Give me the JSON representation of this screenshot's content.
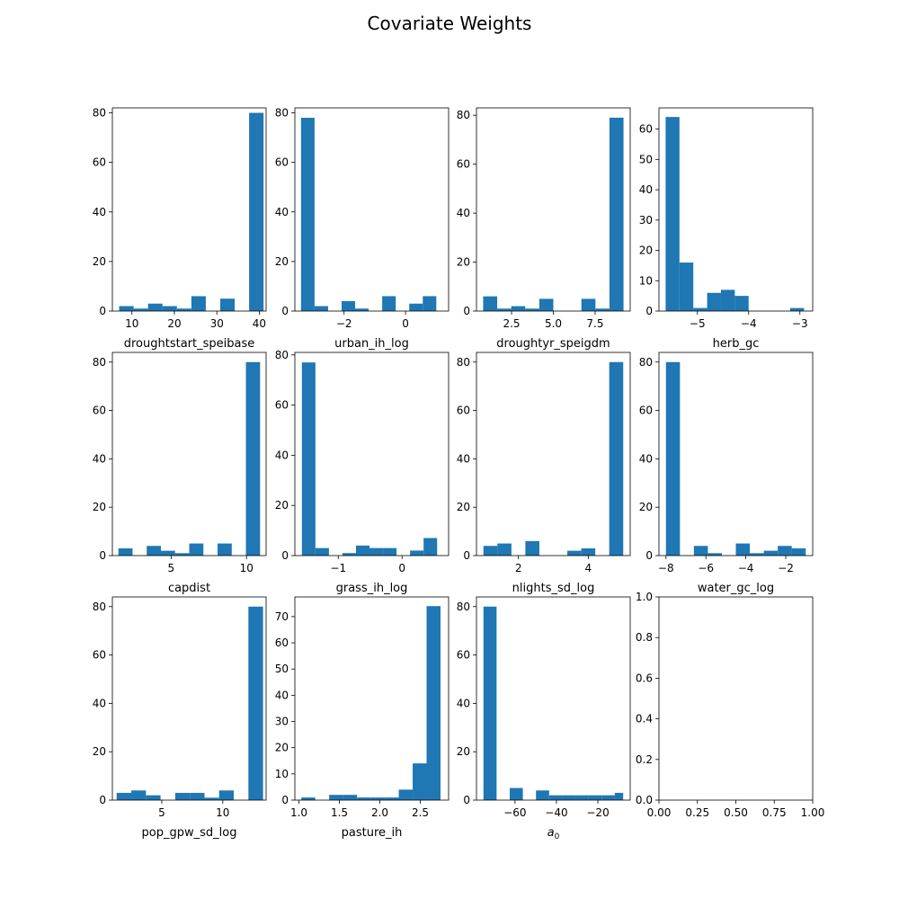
{
  "title": "Covariate Weights",
  "bar_color": "#1f77b4",
  "chart_data": [
    {
      "type": "bar",
      "xlabel": "droughtstart_speibase",
      "xlim": [
        5.4,
        41.6
      ],
      "ylim": [
        0,
        82
      ],
      "xticks": [
        10,
        20,
        30,
        40
      ],
      "xtick_labels": [
        "10",
        "20",
        "30",
        "40"
      ],
      "yticks": [
        0,
        20,
        40,
        60,
        80
      ],
      "ytick_labels": [
        "0",
        "20",
        "40",
        "60",
        "80"
      ],
      "bins": [
        [
          7,
          10.4,
          2
        ],
        [
          10.4,
          13.8,
          1
        ],
        [
          13.8,
          17.2,
          3
        ],
        [
          17.2,
          20.6,
          2
        ],
        [
          20.6,
          24,
          1
        ],
        [
          24,
          27.4,
          6
        ],
        [
          27.4,
          30.8,
          0
        ],
        [
          30.8,
          34.2,
          5
        ],
        [
          34.2,
          37.6,
          0
        ],
        [
          37.6,
          41,
          80
        ]
      ]
    },
    {
      "type": "bar",
      "xlabel": "urban_ih_log",
      "xlim": [
        -3.6,
        1.4
      ],
      "ylim": [
        0,
        82
      ],
      "xticks": [
        -2,
        0
      ],
      "xtick_labels": [
        "−2",
        "0"
      ],
      "yticks": [
        0,
        20,
        40,
        60,
        80
      ],
      "ytick_labels": [
        "0",
        "20",
        "40",
        "60",
        "80"
      ],
      "bins": [
        [
          -3.4,
          -2.96,
          78
        ],
        [
          -2.96,
          -2.52,
          2
        ],
        [
          -2.52,
          -2.08,
          0
        ],
        [
          -2.08,
          -1.64,
          4
        ],
        [
          -1.64,
          -1.2,
          1
        ],
        [
          -1.2,
          -0.76,
          0
        ],
        [
          -0.76,
          -0.32,
          6
        ],
        [
          -0.32,
          0.12,
          0
        ],
        [
          0.12,
          0.56,
          3
        ],
        [
          0.56,
          1,
          6
        ]
      ]
    },
    {
      "type": "bar",
      "xlabel": "droughtyr_speigdm",
      "xlim": [
        0.4,
        9.6
      ],
      "ylim": [
        0,
        83
      ],
      "xticks": [
        2.5,
        5.0,
        7.5
      ],
      "xtick_labels": [
        "2.5",
        "5.0",
        "7.5"
      ],
      "yticks": [
        0,
        20,
        40,
        60,
        80
      ],
      "ytick_labels": [
        "0",
        "20",
        "40",
        "60",
        "80"
      ],
      "bins": [
        [
          0.8,
          1.64,
          6
        ],
        [
          1.64,
          2.48,
          1
        ],
        [
          2.48,
          3.32,
          2
        ],
        [
          3.32,
          4.16,
          1
        ],
        [
          4.16,
          5,
          5
        ],
        [
          5,
          5.84,
          0
        ],
        [
          5.84,
          6.68,
          0
        ],
        [
          6.68,
          7.52,
          5
        ],
        [
          7.52,
          8.36,
          1
        ],
        [
          8.36,
          9.2,
          79
        ]
      ]
    },
    {
      "type": "bar",
      "xlabel": "herb_gc",
      "xlim": [
        -5.75,
        -2.75
      ],
      "ylim": [
        0,
        67
      ],
      "xticks": [
        -5,
        -4,
        -3
      ],
      "xtick_labels": [
        "−5",
        "−4",
        "−3"
      ],
      "yticks": [
        0,
        10,
        20,
        30,
        40,
        50,
        60
      ],
      "ytick_labels": [
        "0",
        "10",
        "20",
        "30",
        "40",
        "50",
        "60"
      ],
      "bins": [
        [
          -5.62,
          -5.35,
          64
        ],
        [
          -5.35,
          -5.08,
          16
        ],
        [
          -5.08,
          -4.81,
          1
        ],
        [
          -4.81,
          -4.54,
          6
        ],
        [
          -4.54,
          -4.27,
          7
        ],
        [
          -4.27,
          -4,
          5
        ],
        [
          -4,
          -3.73,
          0
        ],
        [
          -3.73,
          -3.46,
          0
        ],
        [
          -3.46,
          -3.19,
          0
        ],
        [
          -3.19,
          -2.92,
          1
        ]
      ]
    },
    {
      "type": "bar",
      "xlabel": "capdist",
      "xlim": [
        1.1,
        11.3
      ],
      "ylim": [
        0,
        84
      ],
      "xticks": [
        5,
        10
      ],
      "xtick_labels": [
        "5",
        "10"
      ],
      "yticks": [
        0,
        20,
        40,
        60,
        80
      ],
      "ytick_labels": [
        "0",
        "20",
        "40",
        "60",
        "80"
      ],
      "bins": [
        [
          1.5,
          2.44,
          3
        ],
        [
          2.44,
          3.38,
          0
        ],
        [
          3.38,
          4.32,
          4
        ],
        [
          4.32,
          5.26,
          2
        ],
        [
          5.26,
          6.2,
          1
        ],
        [
          6.2,
          7.14,
          5
        ],
        [
          7.14,
          8.08,
          0
        ],
        [
          8.08,
          9.02,
          5
        ],
        [
          9.02,
          9.96,
          0
        ],
        [
          9.96,
          10.9,
          80
        ]
      ]
    },
    {
      "type": "bar",
      "xlabel": "grass_ih_log",
      "xlim": [
        -1.68,
        0.73
      ],
      "ylim": [
        0,
        81
      ],
      "xticks": [
        -1,
        0
      ],
      "xtick_labels": [
        "−1",
        "0"
      ],
      "yticks": [
        0,
        20,
        40,
        60,
        80
      ],
      "ytick_labels": [
        "0",
        "20",
        "40",
        "60",
        "80"
      ],
      "bins": [
        [
          -1.57,
          -1.358,
          77
        ],
        [
          -1.358,
          -1.146,
          3
        ],
        [
          -1.146,
          -0.934,
          0
        ],
        [
          -0.934,
          -0.722,
          1
        ],
        [
          -0.722,
          -0.51,
          4
        ],
        [
          -0.51,
          -0.298,
          3
        ],
        [
          -0.298,
          -0.086,
          3
        ],
        [
          -0.086,
          0.126,
          0
        ],
        [
          0.126,
          0.338,
          2
        ],
        [
          0.338,
          0.55,
          7
        ]
      ]
    },
    {
      "type": "bar",
      "xlabel": "nlights_sd_log",
      "xlim": [
        0.8,
        5.2
      ],
      "ylim": [
        0,
        84
      ],
      "xticks": [
        2,
        4
      ],
      "xtick_labels": [
        "2",
        "4"
      ],
      "yticks": [
        0,
        20,
        40,
        60,
        80
      ],
      "ytick_labels": [
        "0",
        "20",
        "40",
        "60",
        "80"
      ],
      "bins": [
        [
          1,
          1.4,
          4
        ],
        [
          1.4,
          1.8,
          5
        ],
        [
          1.8,
          2.2,
          0
        ],
        [
          2.2,
          2.6,
          6
        ],
        [
          2.6,
          3,
          0
        ],
        [
          3,
          3.4,
          0
        ],
        [
          3.4,
          3.8,
          2
        ],
        [
          3.8,
          4.2,
          3
        ],
        [
          4.2,
          4.6,
          0
        ],
        [
          4.6,
          5,
          80
        ]
      ]
    },
    {
      "type": "bar",
      "xlabel": "water_gc_log",
      "xlim": [
        -8.35,
        -0.65
      ],
      "ylim": [
        0,
        84
      ],
      "xticks": [
        -8,
        -6,
        -4,
        -2
      ],
      "xtick_labels": [
        "−8",
        "−6",
        "−4",
        "−2"
      ],
      "yticks": [
        0,
        20,
        40,
        60,
        80
      ],
      "ytick_labels": [
        "0",
        "20",
        "40",
        "60",
        "80"
      ],
      "bins": [
        [
          -8,
          -7.3,
          80
        ],
        [
          -7.3,
          -6.6,
          0
        ],
        [
          -6.6,
          -5.9,
          4
        ],
        [
          -5.9,
          -5.2,
          1
        ],
        [
          -5.2,
          -4.5,
          0
        ],
        [
          -4.5,
          -3.8,
          5
        ],
        [
          -3.8,
          -3.1,
          1
        ],
        [
          -3.1,
          -2.4,
          2
        ],
        [
          -2.4,
          -1.7,
          4
        ],
        [
          -1.7,
          -1,
          3
        ]
      ]
    },
    {
      "type": "bar",
      "xlabel": "pop_gpw_sd_log",
      "xlim": [
        0.95,
        13.55
      ],
      "ylim": [
        0,
        84
      ],
      "xticks": [
        5,
        10
      ],
      "xtick_labels": [
        "5",
        "10"
      ],
      "yticks": [
        0,
        20,
        40,
        60,
        80
      ],
      "ytick_labels": [
        "0",
        "20",
        "40",
        "60",
        "80"
      ],
      "bins": [
        [
          1.3,
          2.5,
          3
        ],
        [
          2.5,
          3.7,
          4
        ],
        [
          3.7,
          4.9,
          2
        ],
        [
          4.9,
          6.1,
          0
        ],
        [
          6.1,
          7.3,
          3
        ],
        [
          7.3,
          8.5,
          3
        ],
        [
          8.5,
          9.7,
          1
        ],
        [
          9.7,
          10.9,
          4
        ],
        [
          10.9,
          12.1,
          0
        ],
        [
          12.1,
          13.3,
          80
        ]
      ]
    },
    {
      "type": "bar",
      "xlabel": "pasture_ih",
      "xlim": [
        0.95,
        2.85
      ],
      "ylim": [
        0,
        77.5
      ],
      "xticks": [
        1.0,
        1.5,
        2.0,
        2.5
      ],
      "xtick_labels": [
        "1.0",
        "1.5",
        "2.0",
        "2.5"
      ],
      "yticks": [
        0,
        10,
        20,
        30,
        40,
        50,
        60,
        70
      ],
      "ytick_labels": [
        "0",
        "10",
        "20",
        "30",
        "40",
        "50",
        "60",
        "70"
      ],
      "bins": [
        [
          1.03,
          1.202,
          1
        ],
        [
          1.202,
          1.374,
          0
        ],
        [
          1.374,
          1.546,
          2
        ],
        [
          1.546,
          1.718,
          2
        ],
        [
          1.718,
          1.89,
          1
        ],
        [
          1.89,
          2.062,
          1
        ],
        [
          2.062,
          2.234,
          1
        ],
        [
          2.234,
          2.406,
          4
        ],
        [
          2.406,
          2.578,
          14
        ],
        [
          2.578,
          2.75,
          74
        ]
      ]
    },
    {
      "type": "bar",
      "xlabel": "a",
      "xlabel_sub": "0",
      "xlim": [
        -78.6,
        -4.4
      ],
      "ylim": [
        0,
        84
      ],
      "xticks": [
        -60,
        -40,
        -20
      ],
      "xtick_labels": [
        "−60",
        "−40",
        "−20"
      ],
      "yticks": [
        0,
        20,
        40,
        60,
        80
      ],
      "ytick_labels": [
        "0",
        "20",
        "40",
        "60",
        "80"
      ],
      "bins": [
        [
          -75.23,
          -68.89,
          80
        ],
        [
          -68.89,
          -62.55,
          0
        ],
        [
          -62.55,
          -56.21,
          5
        ],
        [
          -56.21,
          -49.87,
          0
        ],
        [
          -49.87,
          -43.53,
          4
        ],
        [
          -43.53,
          -37.19,
          2
        ],
        [
          -37.19,
          -30.85,
          2
        ],
        [
          -30.85,
          -24.51,
          2
        ],
        [
          -24.51,
          -18.17,
          2
        ],
        [
          -18.17,
          -11.83,
          2
        ],
        [
          -11.83,
          -7.8,
          3
        ]
      ]
    },
    {
      "type": "bar",
      "xlabel": "",
      "xlim": [
        0,
        1
      ],
      "ylim": [
        0,
        1
      ],
      "xticks": [
        0,
        0.25,
        0.5,
        0.75,
        1
      ],
      "xtick_labels": [
        "0.00",
        "0.25",
        "0.50",
        "0.75",
        "1.00"
      ],
      "yticks": [
        0,
        0.2,
        0.4,
        0.6,
        0.8,
        1
      ],
      "ytick_labels": [
        "0.0",
        "0.2",
        "0.4",
        "0.6",
        "0.8",
        "1.0"
      ],
      "bins": []
    }
  ]
}
